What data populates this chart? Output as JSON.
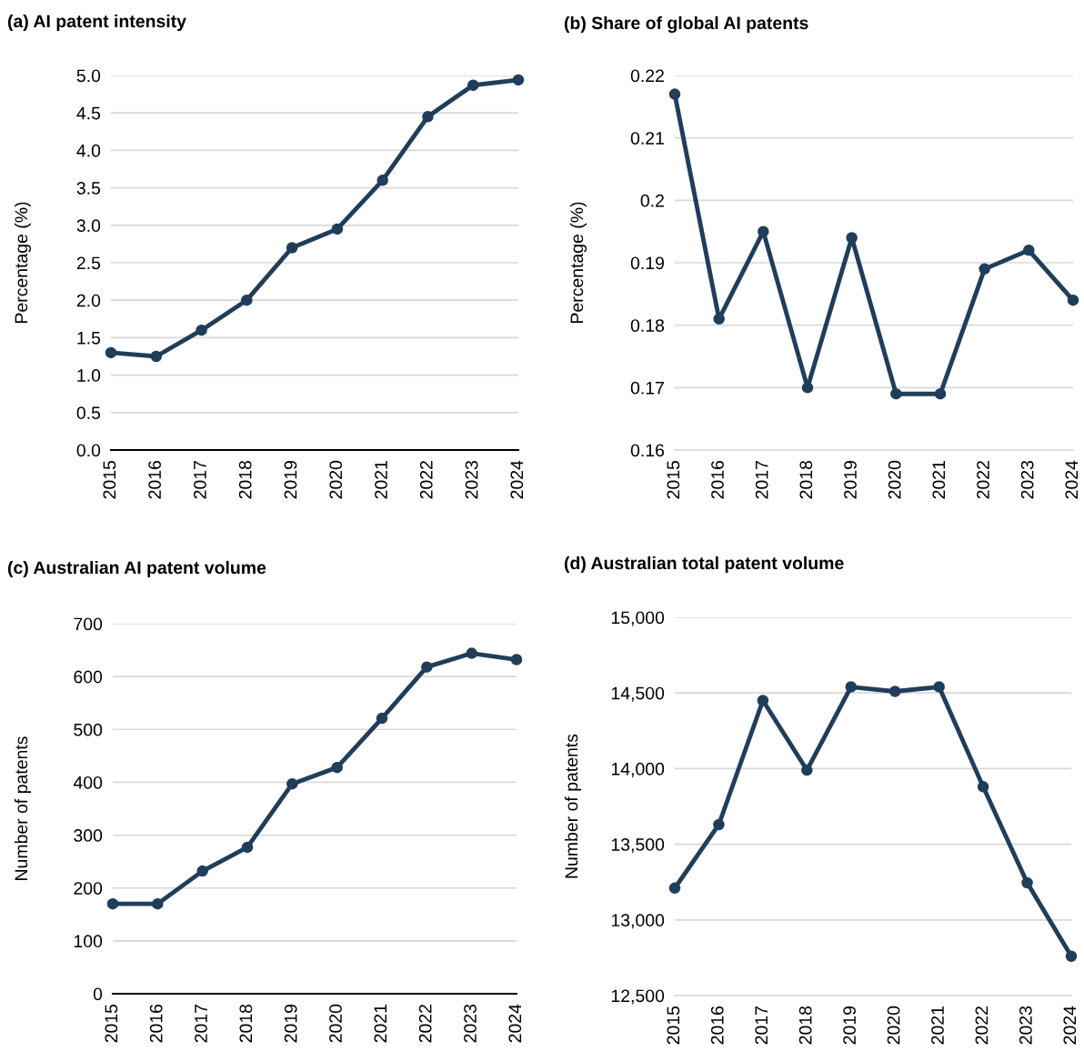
{
  "chart_data": [
    {
      "type": "line",
      "title": "(a) AI patent intensity",
      "ylabel": "Percentage (%)",
      "categories": [
        "2015",
        "2016",
        "2017",
        "2018",
        "2019",
        "2020",
        "2021",
        "2022",
        "2023",
        "2024"
      ],
      "series": [
        {
          "color": "#203e5a",
          "values": [
            1.3,
            1.25,
            1.6,
            2.0,
            2.7,
            2.95,
            3.6,
            4.45,
            4.87,
            4.94
          ]
        }
      ],
      "ylim": [
        0,
        5
      ],
      "yticks": [
        {
          "value": 0,
          "label": "0.0"
        },
        {
          "value": 0.5,
          "label": "0.5"
        },
        {
          "value": 1,
          "label": "1.0"
        },
        {
          "value": 1.5,
          "label": "1.5"
        },
        {
          "value": 2,
          "label": "2.0"
        },
        {
          "value": 2.5,
          "label": "2.5"
        },
        {
          "value": 3,
          "label": "3.0"
        },
        {
          "value": 3.5,
          "label": "3.5"
        },
        {
          "value": 4,
          "label": "4.0"
        },
        {
          "value": 4.5,
          "label": "4.5"
        },
        {
          "value": 5,
          "label": "5.0"
        }
      ],
      "grid": "y",
      "marker": "circle",
      "line_style": "solid"
    },
    {
      "type": "line",
      "title": "(b) Share of global AI patents",
      "ylabel": "Percentage (%)",
      "categories": [
        "2015",
        "2016",
        "2017",
        "2018",
        "2019",
        "2020",
        "2021",
        "2022",
        "2023",
        "2024"
      ],
      "series": [
        {
          "color": "#203e5a",
          "values": [
            0.217,
            0.181,
            0.195,
            0.17,
            0.194,
            0.169,
            0.169,
            0.189,
            0.192,
            0.184
          ]
        }
      ],
      "ylim": [
        0.16,
        0.22
      ],
      "yticks": [
        0.16,
        0.17,
        0.18,
        0.19,
        0.2,
        0.21,
        0.22
      ],
      "grid": "y",
      "marker": "circle",
      "line_style": "solid"
    },
    {
      "type": "line",
      "title": "(c) Australian AI patent volume",
      "ylabel": "Number of patents",
      "categories": [
        "2015",
        "2016",
        "2017",
        "2018",
        "2019",
        "2020",
        "2021",
        "2022",
        "2023",
        "2024"
      ],
      "series": [
        {
          "color": "#203e5a",
          "values": [
            170,
            170,
            232,
            277,
            397,
            428,
            521,
            618,
            644,
            632
          ]
        }
      ],
      "ylim": [
        0,
        700
      ],
      "yticks": [
        0,
        100,
        200,
        300,
        400,
        500,
        600,
        700
      ],
      "grid": "y",
      "marker": "circle",
      "line_style": "solid"
    },
    {
      "type": "line",
      "title": "(d) Australian total patent volume",
      "ylabel": "Number of patents",
      "categories": [
        "2015",
        "2016",
        "2017",
        "2018",
        "2019",
        "2020",
        "2021",
        "2022",
        "2023",
        "2024"
      ],
      "series": [
        {
          "color": "#203e5a",
          "values": [
            13210,
            13630,
            14450,
            13990,
            14540,
            14510,
            14540,
            13880,
            13245,
            12760
          ]
        }
      ],
      "ylim": [
        12500,
        15000
      ],
      "yticks": [
        {
          "value": 12500,
          "label": "12,500"
        },
        {
          "value": 13000,
          "label": "13,000"
        },
        {
          "value": 13500,
          "label": "13,500"
        },
        {
          "value": 14000,
          "label": "14,000"
        },
        {
          "value": 14500,
          "label": "14,500"
        },
        {
          "value": 15000,
          "label": "15,000"
        }
      ],
      "grid": "y",
      "marker": "circle",
      "line_style": "solid"
    }
  ]
}
